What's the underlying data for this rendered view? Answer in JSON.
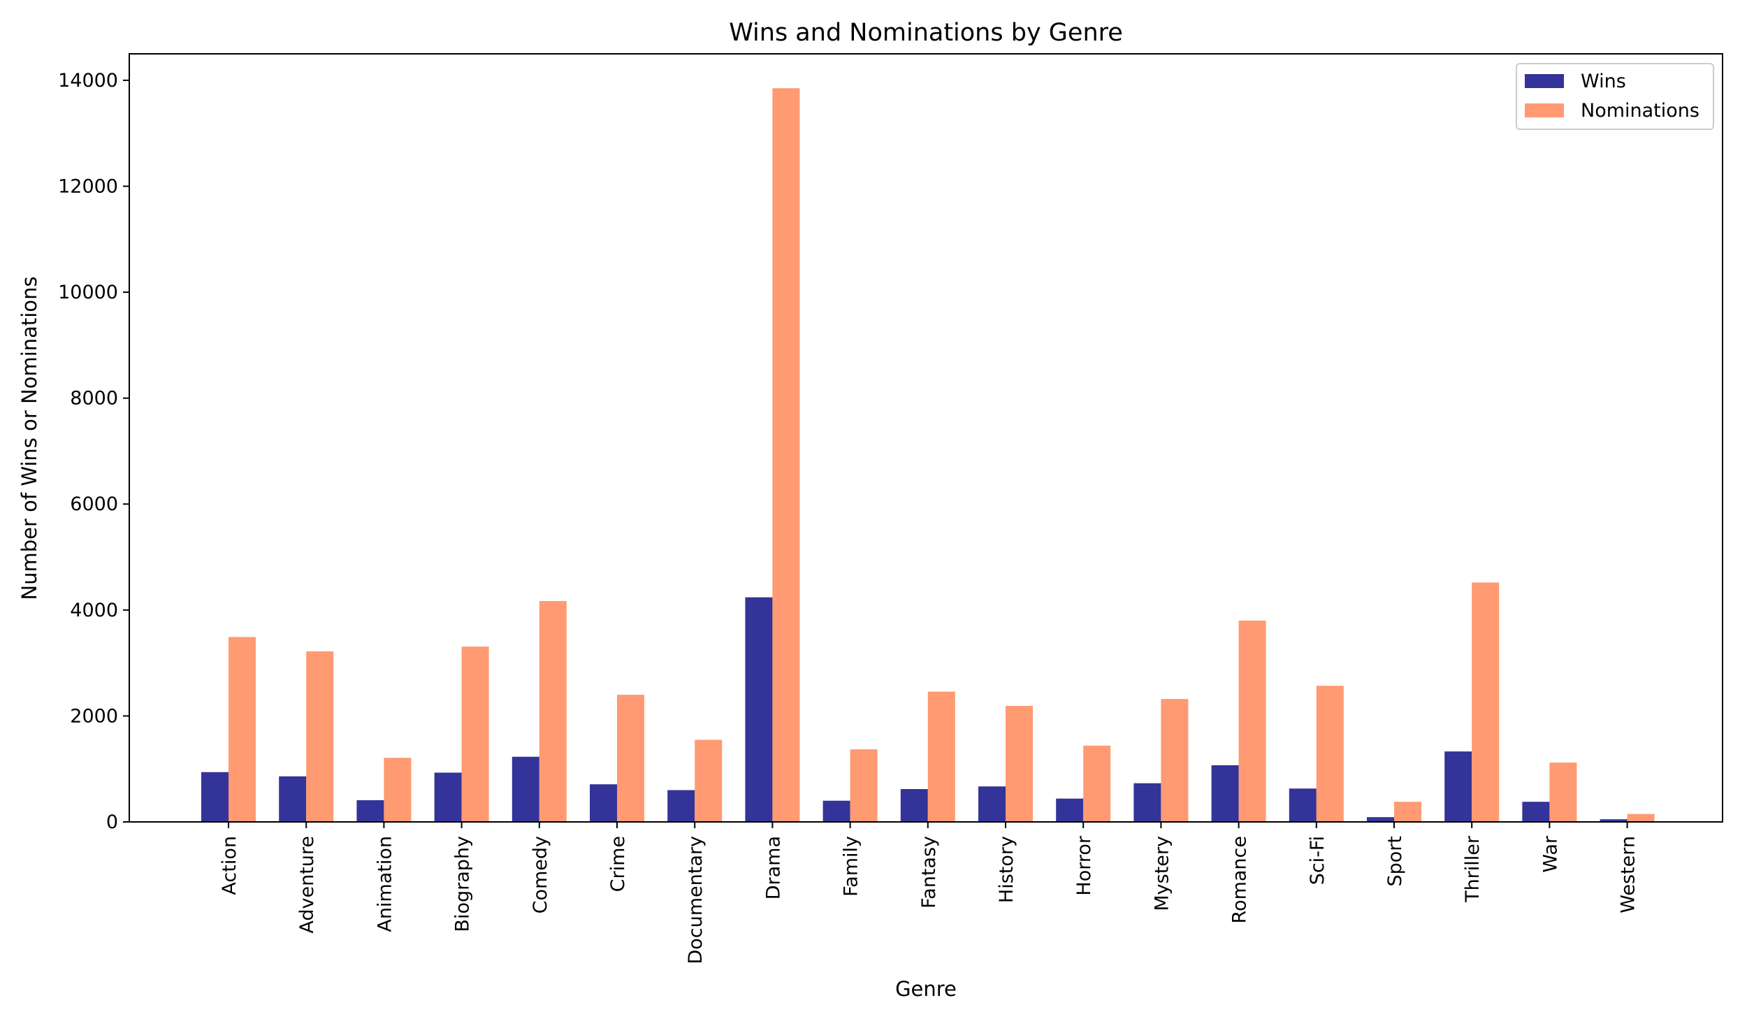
{
  "chart_data": {
    "type": "bar",
    "title": "Wins and Nominations by Genre",
    "xlabel": "Genre",
    "ylabel": "Number of Wins or Nominations",
    "ylim": [
      0,
      14500
    ],
    "yticks": [
      0,
      2000,
      4000,
      6000,
      8000,
      10000,
      12000,
      14000
    ],
    "grid": false,
    "legend_position": "top-right",
    "categories": [
      "Action",
      "Adventure",
      "Animation",
      "Biography",
      "Comedy",
      "Crime",
      "Documentary",
      "Drama",
      "Family",
      "Fantasy",
      "History",
      "Horror",
      "Mystery",
      "Romance",
      "Sci-Fi",
      "Sport",
      "Thriller",
      "War",
      "Western"
    ],
    "series": [
      {
        "name": "Wins",
        "color": "#333399",
        "values": [
          940,
          860,
          410,
          930,
          1230,
          710,
          600,
          4240,
          400,
          620,
          670,
          440,
          730,
          1070,
          630,
          90,
          1330,
          380,
          50
        ]
      },
      {
        "name": "Nominations",
        "color": "#ff9a72",
        "values": [
          3490,
          3220,
          1210,
          3310,
          4170,
          2400,
          1550,
          13850,
          1370,
          2460,
          2190,
          1440,
          2320,
          3800,
          2570,
          380,
          4520,
          1120,
          150
        ]
      }
    ]
  }
}
